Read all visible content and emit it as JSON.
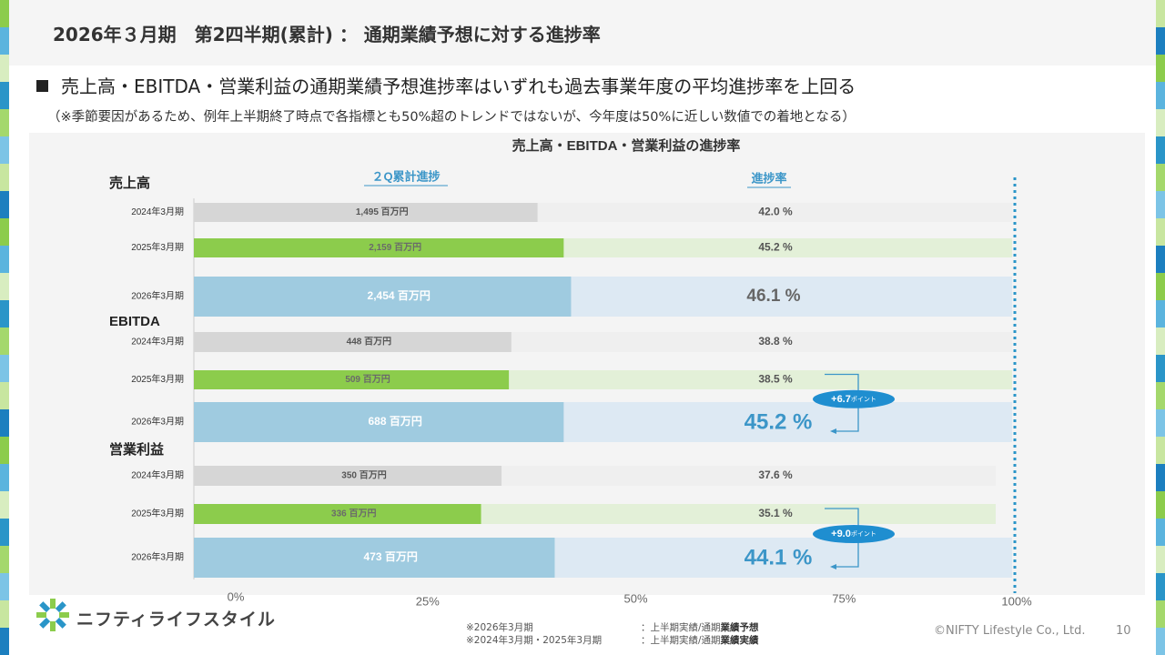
{
  "title": "2026年３月期　第2四半期(累計) ： 通期業績予想に対する進捗率",
  "headline": "売上高・EBITDA・営業利益の通期業績予想進捗率はいずれも過去事業年度の平均進捗率を上回る",
  "note": "（※季節要因があるため、例年上半期終了時点で各指標とも50%超のトレンドではないが、今年度は50%に近しい数値での着地となる）",
  "colors": {
    "gray_bar": "#d6d6d6",
    "gray_track": "#efefef",
    "green_bar": "#8ccc4c",
    "green_track": "#e3f0d8",
    "blue_bar": "#9fcbe0",
    "blue_track": "#dde9f3",
    "accent_blue": "#3c96c8",
    "badge_blue": "#1f8ed0",
    "dotted_line": "#2a95c8"
  },
  "chart_data": {
    "type": "bar",
    "title": "売上高・EBITDA・営業利益の進捗率",
    "header_left": "２Q累計進捗",
    "header_right": "進捗率",
    "x_ticks": [
      "0%",
      "25%",
      "50%",
      "75%",
      "100%"
    ],
    "xlim": [
      0,
      100
    ],
    "unit": "百万円",
    "groups": [
      {
        "name": "売上高",
        "rows": [
          {
            "period": "2024年3月期",
            "amount": "1,495",
            "progress": 42.0,
            "progress_label": "42.0 %",
            "style": "gray"
          },
          {
            "period": "2025年3月期",
            "amount": "2,159",
            "progress": 45.2,
            "progress_label": "45.2 %",
            "style": "green"
          },
          {
            "period": "2026年3月期",
            "amount": "2,454",
            "progress": 46.1,
            "progress_label": "46.1 %",
            "style": "blue"
          }
        ]
      },
      {
        "name": "EBITDA",
        "rows": [
          {
            "period": "2024年3月期",
            "amount": "448",
            "progress": 38.8,
            "progress_label": "38.8 %",
            "style": "gray"
          },
          {
            "period": "2025年3月期",
            "amount": "509",
            "progress": 38.5,
            "progress_label": "38.5 %",
            "style": "green"
          },
          {
            "period": "2026年3月期",
            "amount": "688",
            "progress": 45.2,
            "progress_label": "45.2 %",
            "style": "blue"
          }
        ],
        "delta": {
          "value": "+6.7",
          "suffix": "ポイント"
        }
      },
      {
        "name": "営業利益",
        "rows": [
          {
            "period": "2024年3月期",
            "amount": "350",
            "progress": 37.6,
            "progress_label": "37.6 %",
            "style": "gray"
          },
          {
            "period": "2025年3月期",
            "amount": "336",
            "progress": 35.1,
            "progress_label": "35.1 %",
            "style": "green"
          },
          {
            "period": "2026年3月期",
            "amount": "473",
            "progress": 44.1,
            "progress_label": "44.1 %",
            "style": "blue"
          }
        ],
        "delta": {
          "value": "+9.0",
          "suffix": "ポイント"
        }
      }
    ]
  },
  "logo_text": "ニフティライフスタイル",
  "footnotes": {
    "line1_left": "※2026年3月期",
    "line1_right_plain": "：上半期実績/通期",
    "line1_right_bold": "業績予想",
    "line2_left": "※2024年3月期・2025年3月期",
    "line2_right_plain": "：上半期実績/通期",
    "line2_right_bold": "業績実績"
  },
  "copyright": "©NIFTY Lifestyle Co., Ltd.",
  "page_number": "10"
}
